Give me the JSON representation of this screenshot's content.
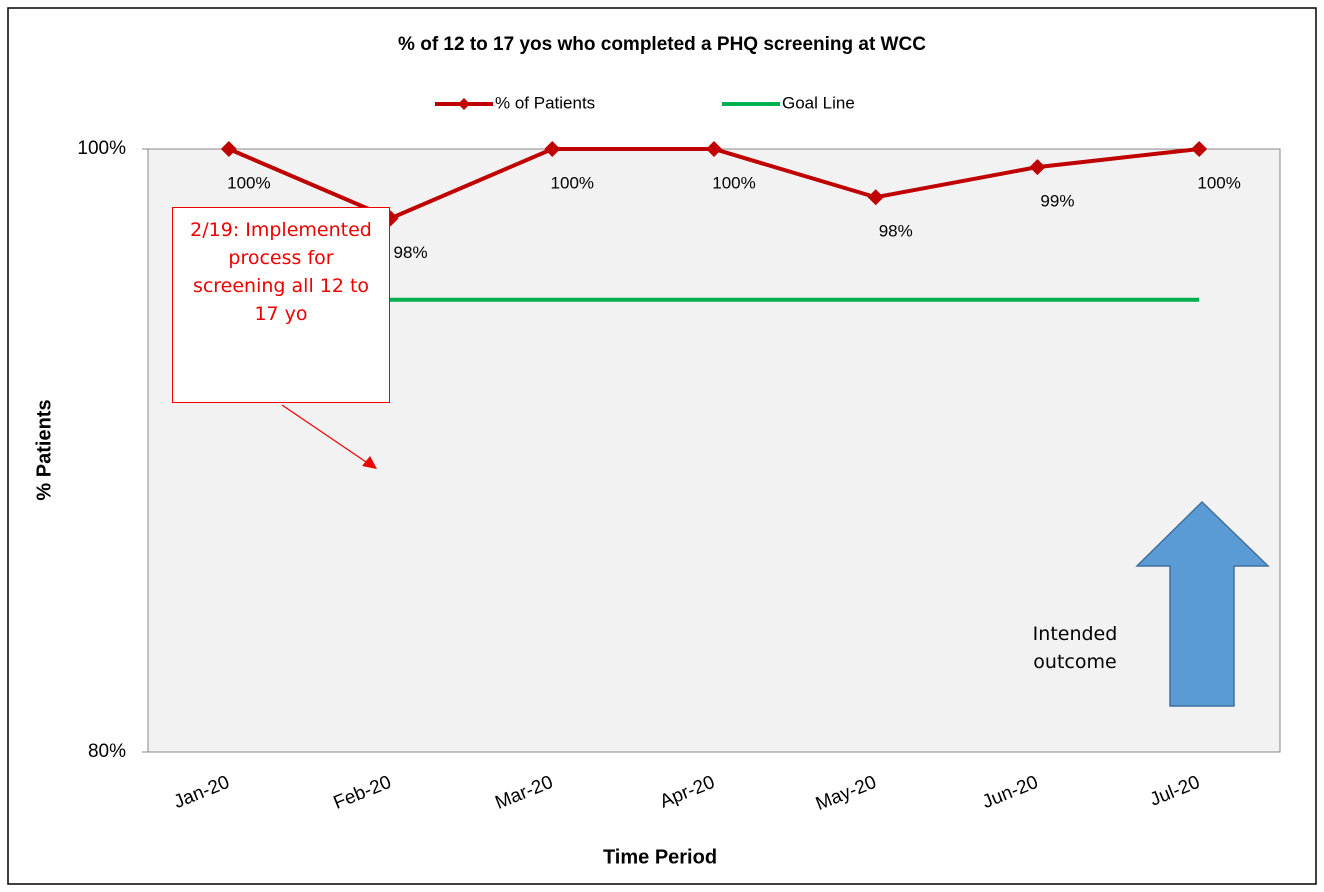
{
  "chart_data": {
    "type": "line",
    "title": "% of 12 to 17 yos who completed a PHQ screening at WCC",
    "x_label": "Time Period",
    "y_label": "% Patients",
    "categories": [
      "Jan-20",
      "Feb-20",
      "Mar-20",
      "Apr-20",
      "May-20",
      "Jun-20",
      "Jul-20"
    ],
    "series": [
      {
        "name": "% of Patients",
        "color": "#c00000",
        "values": [
          100,
          97.7,
          100,
          100,
          98.4,
          99.4,
          100
        ],
        "value_labels": [
          "100%",
          "98%",
          "100%",
          "100%",
          "98%",
          "99%",
          "100%"
        ]
      },
      {
        "name": "Goal Line",
        "color": "#00b050",
        "values": [
          95,
          95,
          95,
          95,
          95,
          95,
          95
        ]
      }
    ],
    "ylim": [
      80,
      100
    ],
    "yticks": [
      {
        "value": 80,
        "label": "80%"
      },
      {
        "value": 100,
        "label": "100%"
      }
    ],
    "annotations": [
      "2/19: Implemented process for screening all 12 to 17 yo",
      "Intended outcome"
    ]
  }
}
